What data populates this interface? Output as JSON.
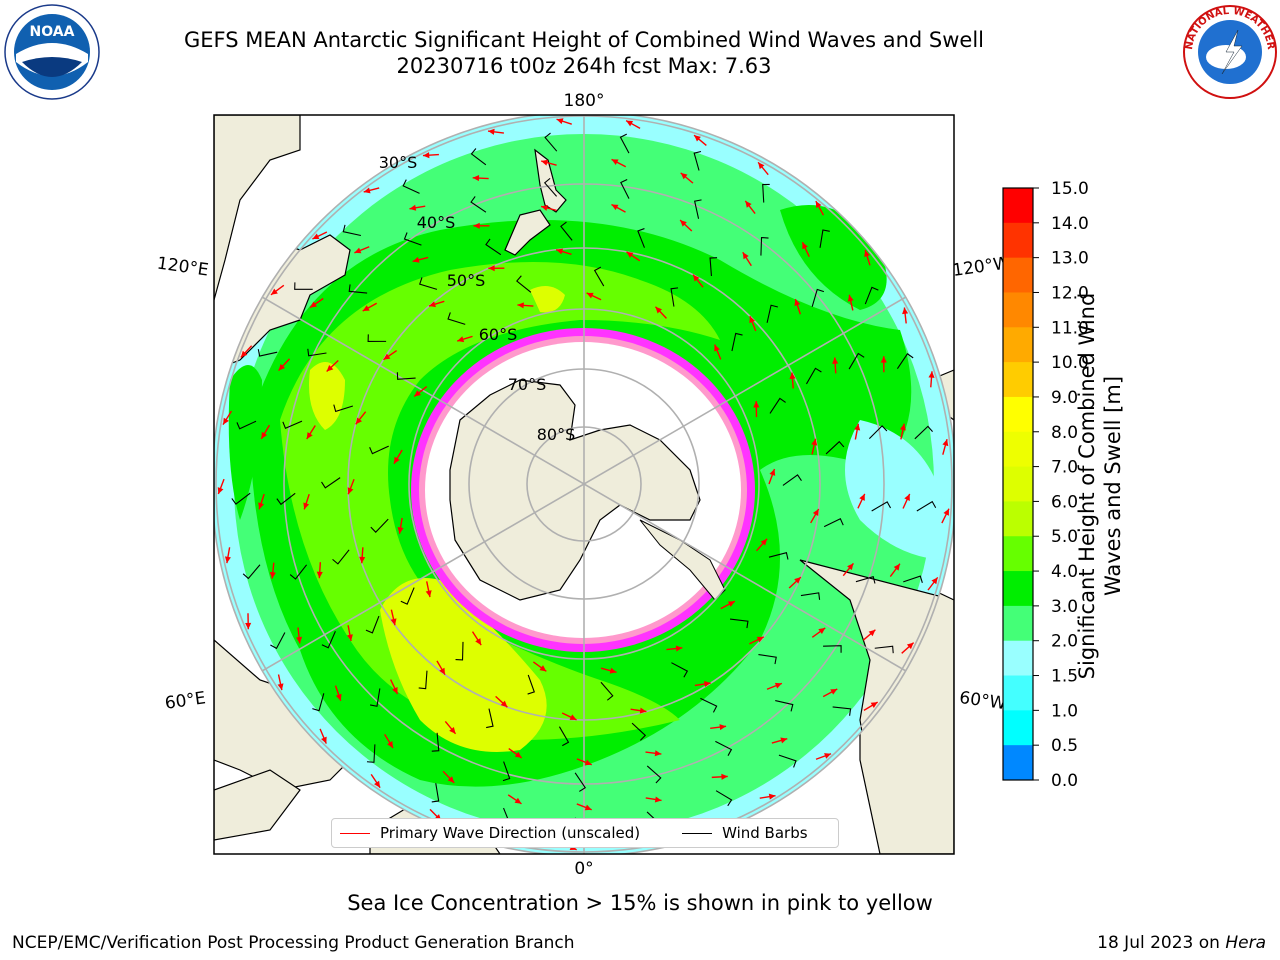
{
  "title_line1": "GEFS MEAN Antarctic Significant Height of Combined Wind Waves and Swell",
  "title_line2": "20230716 t00z 264h fcst   Max: 7.63",
  "longitude_labels": {
    "top": "180°",
    "bottom": "0°",
    "upper_left": "120°E",
    "upper_right": "120°W",
    "lower_left": "60°E",
    "lower_right": "60°W"
  },
  "latitude_labels": [
    "30°S",
    "40°S",
    "50°S",
    "60°S",
    "70°S",
    "80°S"
  ],
  "colorbar": {
    "label": "Significant Height of Combined Wind Waves and Swell [m]",
    "ticks": [
      "15.0",
      "14.0",
      "13.0",
      "12.0",
      "11.0",
      "10.0",
      "9.0",
      "8.0",
      "7.0",
      "6.0",
      "5.0",
      "4.0",
      "3.0",
      "2.0",
      "1.5",
      "1.0",
      "0.5",
      "0.0"
    ],
    "colors": [
      "#ff0000",
      "#ff3300",
      "#ff6600",
      "#ff8800",
      "#ffaa00",
      "#ffcc00",
      "#ffff00",
      "#eeff00",
      "#ddff00",
      "#bbff00",
      "#66ff00",
      "#00ee00",
      "#44ff77",
      "#99ffff",
      "#44ffff",
      "#00ffff",
      "#0088ff",
      "#0044ff",
      "#0000ff"
    ]
  },
  "legend": {
    "wave_direction": "Primary Wave Direction (unscaled)",
    "wind_barbs": "Wind Barbs"
  },
  "colors": {
    "land": "#efeddb",
    "ocean_low": "#99ffff",
    "wave_arrow": "#ff0000",
    "ice": "#ff33ff"
  },
  "footer_note": "Sea Ice Concentration > 15% is shown in pink to yellow",
  "footer_left": "NCEP/EMC/Verification Post Processing Product Generation Branch",
  "footer_date": "18 Jul 2023 on ",
  "footer_machine": "Hera",
  "logos": {
    "left": "noaa-logo-icon",
    "right": "nws-logo-icon",
    "noaa_text": "NOAA",
    "nws_text": "NATIONAL WEATHER SERVICE"
  }
}
